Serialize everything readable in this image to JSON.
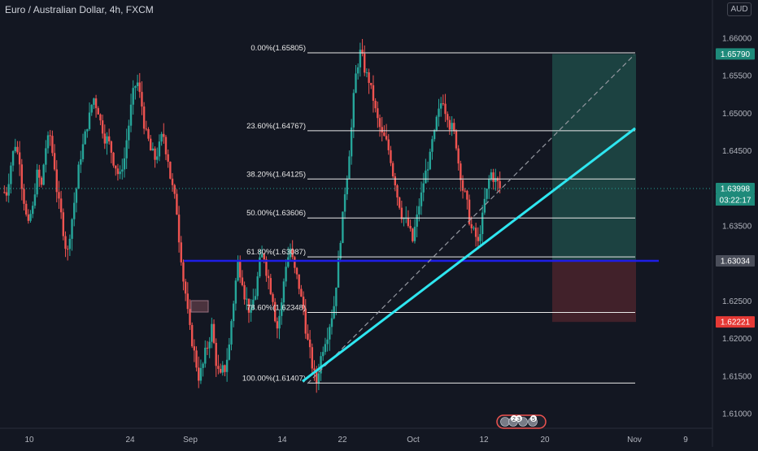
{
  "header": {
    "title": "Euro / Australian Dollar, 4h, FXCM",
    "currency": "AUD"
  },
  "chart_data": {
    "type": "candlestick",
    "y_axis": {
      "range": [
        1.6075,
        1.662
      ],
      "ticks": [
        1.61,
        1.615,
        1.62,
        1.625,
        1.63,
        1.635,
        1.64,
        1.645,
        1.65,
        1.655,
        1.66
      ],
      "tick_labels": [
        "1.61000",
        "1.61500",
        "1.62000",
        "1.62500",
        "1.63000",
        "1.63500",
        "1.64000",
        "1.64500",
        "1.65000",
        "1.65500",
        "1.66000"
      ]
    },
    "x_axis": {
      "tick_labels": [
        "10",
        "24",
        "Sep",
        "14",
        "22",
        "Oct",
        "12",
        "20",
        "Nov",
        "9"
      ]
    },
    "price_series": [
      1.6395,
      1.6432,
      1.646,
      1.644,
      1.6385,
      1.6348,
      1.6372,
      1.6418,
      1.6402,
      1.6455,
      1.647,
      1.643,
      1.6378,
      1.6345,
      1.6315,
      1.636,
      1.64,
      1.6445,
      1.647,
      1.6495,
      1.652,
      1.6505,
      1.648,
      1.6465,
      1.645,
      1.643,
      1.6415,
      1.644,
      1.6485,
      1.6525,
      1.654,
      1.651,
      1.647,
      1.645,
      1.644,
      1.6455,
      1.647,
      1.644,
      1.64,
      1.637,
      1.631,
      1.626,
      1.621,
      1.618,
      1.615,
      1.6165,
      1.619,
      1.6215,
      1.617,
      1.6148,
      1.616,
      1.619,
      1.625,
      1.63,
      1.628,
      1.625,
      1.623,
      1.626,
      1.63,
      1.631,
      1.628,
      1.6255,
      1.6215,
      1.6245,
      1.63,
      1.632,
      1.629,
      1.627,
      1.624,
      1.6195,
      1.6165,
      1.6142,
      1.6175,
      1.62,
      1.622,
      1.6245,
      1.63,
      1.636,
      1.642,
      1.648,
      1.655,
      1.658,
      1.656,
      1.6545,
      1.652,
      1.649,
      1.647,
      1.646,
      1.644,
      1.641,
      1.638,
      1.636,
      1.635,
      1.633,
      1.636,
      1.639,
      1.642,
      1.644,
      1.647,
      1.65,
      1.652,
      1.65,
      1.648,
      1.646,
      1.642,
      1.639,
      1.636,
      1.634,
      1.6325,
      1.636,
      1.6395,
      1.642,
      1.641,
      1.64
    ],
    "current_price": {
      "value": 1.63998,
      "label": "1.63998",
      "countdown": "03:22:17"
    },
    "fibonacci": {
      "levels": [
        {
          "ratio": 0.0,
          "label": "0.00%(1.65805)",
          "price": 1.65805
        },
        {
          "ratio": 0.236,
          "label": "23.60%(1.64767)",
          "price": 1.64767
        },
        {
          "ratio": 0.382,
          "label": "38.20%(1.64125)",
          "price": 1.64125
        },
        {
          "ratio": 0.5,
          "label": "50.00%(1.63606)",
          "price": 1.63606
        },
        {
          "ratio": 0.618,
          "label": "61.80%(1.63087)",
          "price": 1.63087
        },
        {
          "ratio": 0.786,
          "label": "78.60%(1.62348)",
          "price": 1.62348
        },
        {
          "ratio": 1.0,
          "label": "100.00%(1.61407)",
          "price": 1.61407
        }
      ]
    },
    "horizontal_level": {
      "price": 1.63034,
      "label": "1.63034",
      "color": "#1e1ee6"
    },
    "position": {
      "target": {
        "price": 1.6579,
        "label": "1.65790"
      },
      "entry": {
        "price": 1.6305
      },
      "stop": {
        "price": 1.62221,
        "label": "1.62221"
      }
    },
    "colors": {
      "up": "#26a69a",
      "down": "#ef5350",
      "trendline": "#2ee6f0",
      "profit_zone": "#1e4a46",
      "loss_zone": "#4a232b",
      "fib_line": "#e8e8e8"
    },
    "event_badges": [
      "2",
      "3",
      "5"
    ]
  }
}
